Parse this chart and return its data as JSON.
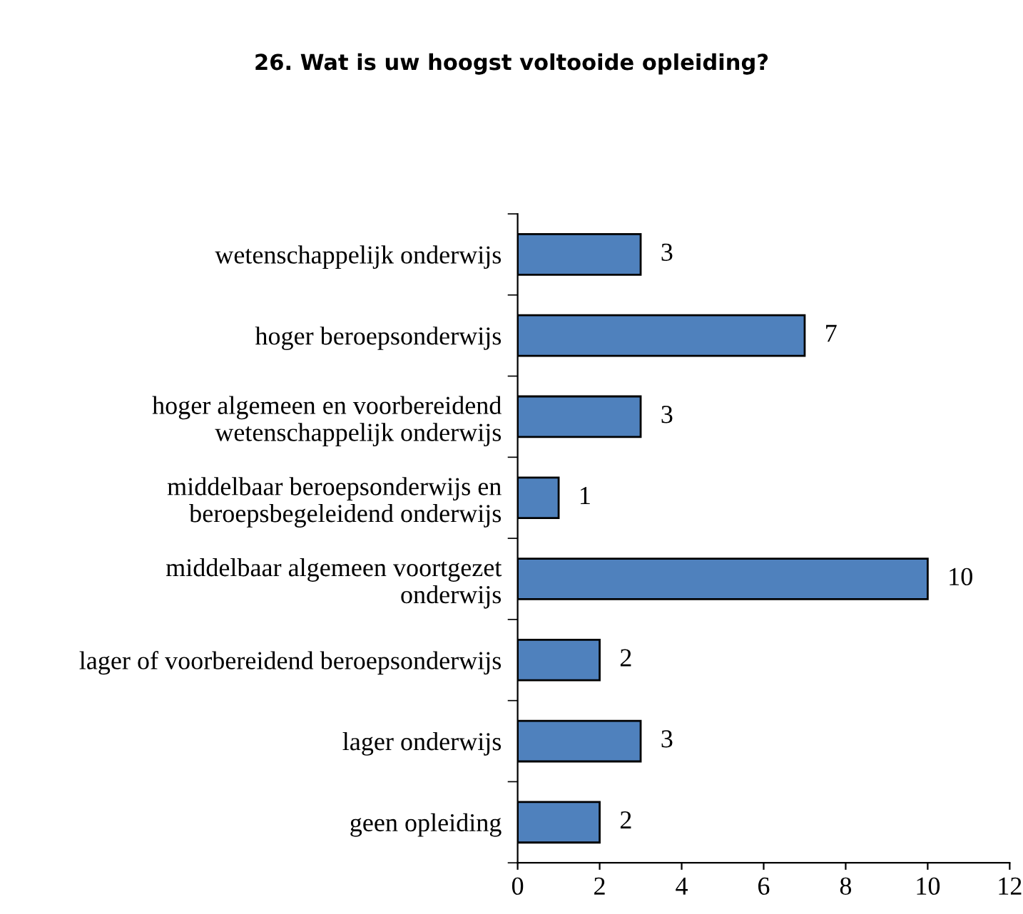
{
  "chart_data": {
    "type": "bar",
    "orientation": "horizontal",
    "title": "26. Wat is uw hoogst voltooide opleiding?",
    "categories": [
      "wetenschappelijk onderwijs",
      "hoger beroepsonderwijs",
      "hoger algemeen en voorbereidend\nwetenschappelijk onderwijs",
      "middelbaar beroepsonderwijs en\nberoepsbegeleidend onderwijs",
      "middelbaar algemeen voortgezet\nonderwijs",
      "lager of voorbereidend beroepsonderwijs",
      "lager onderwijs",
      "geen opleiding"
    ],
    "values": [
      3,
      7,
      3,
      1,
      10,
      2,
      3,
      2
    ],
    "color": "#4f81bd",
    "xlim": [
      0,
      12
    ],
    "xticks": [
      0,
      2,
      4,
      6,
      8,
      10,
      12
    ],
    "data_labels": true,
    "grid": false
  }
}
